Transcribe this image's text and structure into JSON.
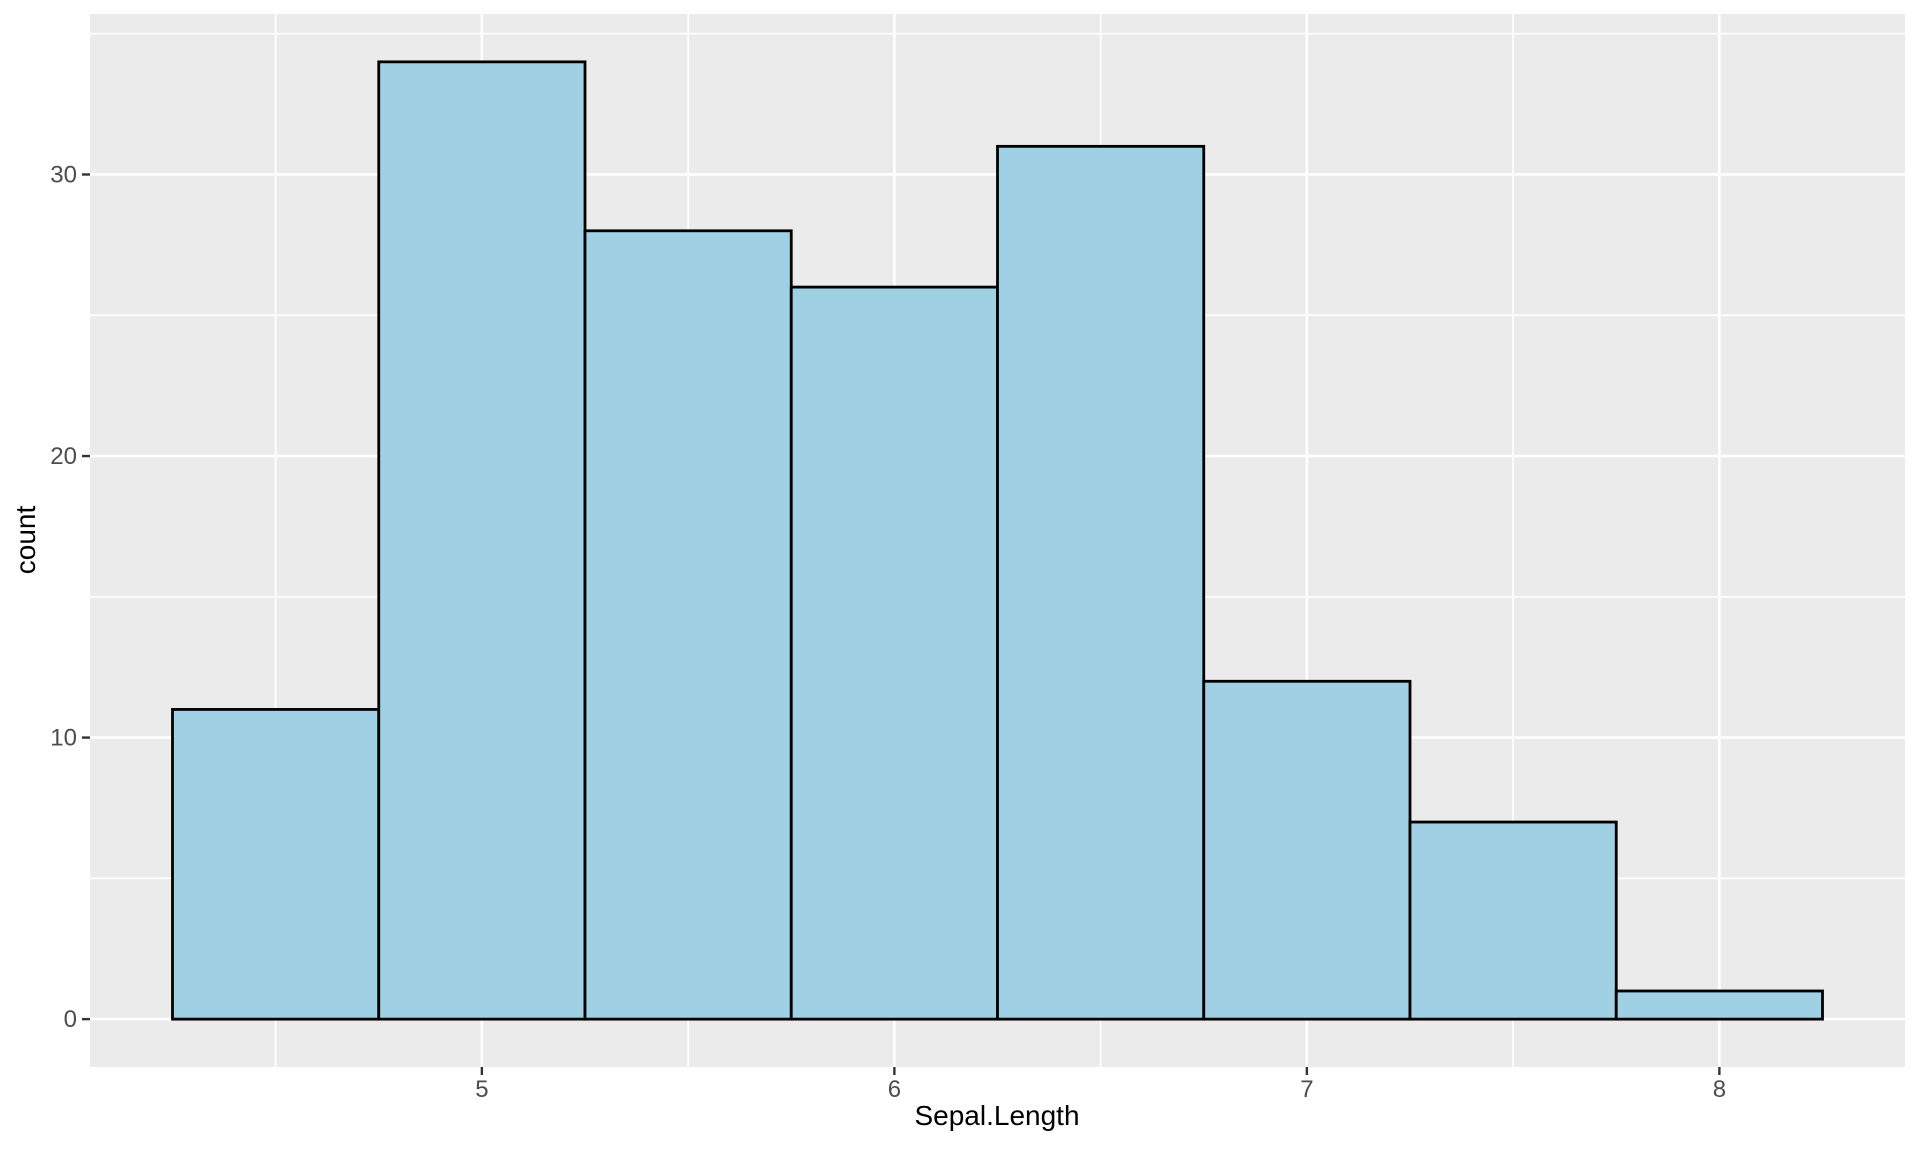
{
  "chart_data": {
    "type": "bar",
    "subtype": "histogram",
    "xlabel": "Sepal.Length",
    "ylabel": "count",
    "bin_width": 0.5,
    "bin_edges": [
      4.25,
      4.75,
      5.25,
      5.75,
      6.25,
      6.75,
      7.25,
      7.75,
      8.25
    ],
    "bin_centers": [
      4.5,
      5.0,
      5.5,
      6.0,
      6.5,
      7.0,
      7.5,
      8.0
    ],
    "counts": [
      11,
      34,
      28,
      26,
      31,
      12,
      7,
      1
    ],
    "x_tick_values": [
      5,
      6,
      7,
      8
    ],
    "x_tick_labels": [
      "5",
      "6",
      "7",
      "8"
    ],
    "y_tick_values": [
      0,
      10,
      20,
      30
    ],
    "y_tick_labels": [
      "0",
      "10",
      "20",
      "30"
    ],
    "x_minor_gridlines": [
      4.5,
      5.5,
      6.5,
      7.5
    ],
    "y_minor_gridlines": [
      5,
      15,
      25,
      35
    ],
    "xlim": [
      4.05,
      8.45
    ],
    "ylim": [
      -1.7,
      35.7
    ],
    "grid": "major-and-minor",
    "legend": "none",
    "colors": {
      "outer_background": "#FFFFFF",
      "panel_background": "#EBEBEB",
      "gridline": "#FFFFFF",
      "bar_fill": "#9FD0E3",
      "bar_stroke": "#000000",
      "tick_mark": "#333333",
      "tick_label_text": "#4D4D4D",
      "axis_title_text": "#000000"
    }
  }
}
